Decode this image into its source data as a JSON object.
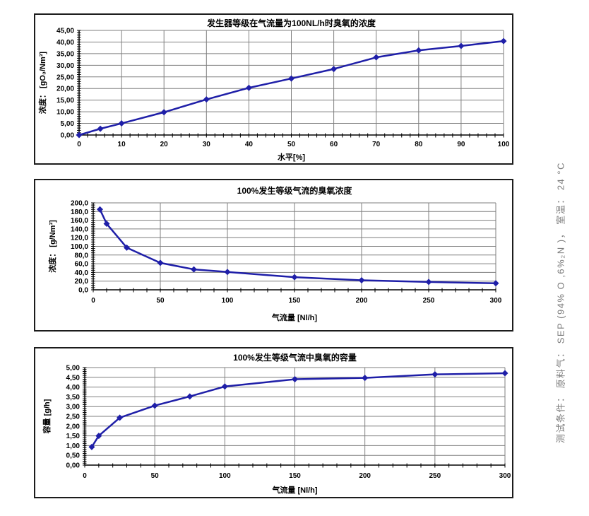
{
  "page": {
    "background": "#ffffff"
  },
  "side_note": {
    "text": "测试条件： 原料气： SEP (94% O ,6%₂N )， 室温： 24 °C",
    "color": "#7c7c7c"
  },
  "style": {
    "series_color": "#1f1fa8",
    "grid_color": "#7f7f7f",
    "axis_color": "#000000",
    "text_color": "#000000",
    "frame_color": "#1c1c1c"
  },
  "chart_data": [
    {
      "type": "line",
      "title": "发生器等级在气流量为100NL/h时臭氧的浓度",
      "xlabel": "水平[%]",
      "ylabel": "浓度： [gO₃/Nm³]",
      "x": [
        0,
        5,
        10,
        20,
        30,
        40,
        50,
        60,
        70,
        80,
        90,
        100
      ],
      "y": [
        0,
        2.7,
        5.0,
        9.8,
        15.3,
        20.3,
        24.3,
        28.4,
        33.4,
        36.4,
        38.3,
        40.4
      ],
      "xlim": [
        0,
        100
      ],
      "ylim": [
        0,
        45
      ],
      "xtick_step": 10,
      "ytick_step": 5,
      "x_minor_step": 2,
      "y_minor_step": 1,
      "x_decimals": 0,
      "y_decimals": 2,
      "decimal_separator": ",",
      "marker": "diamond",
      "grid": true,
      "legend": "none"
    },
    {
      "type": "line",
      "title": "100%发生等级气流的臭氧浓度",
      "xlabel": "气流量 [Nl/h]",
      "ylabel": "浓度： [g/Nm³]",
      "x": [
        5,
        10,
        25,
        50,
        75,
        100,
        150,
        200,
        250,
        300
      ],
      "y": [
        185,
        152,
        97,
        62,
        47,
        41,
        29,
        22,
        18,
        15
      ],
      "xlim": [
        0,
        300
      ],
      "ylim": [
        0,
        200
      ],
      "xtick_step": 50,
      "ytick_step": 20,
      "x_minor_step": 10,
      "y_minor_step": 5,
      "x_decimals": 0,
      "y_decimals": 1,
      "decimal_separator": ",",
      "marker": "diamond",
      "grid": true,
      "legend": "none"
    },
    {
      "type": "line",
      "title": "100%发生等级气流中臭氧的容量",
      "xlabel": "气流量 [Nl/h]",
      "ylabel": "容量 [g/h]",
      "x": [
        5,
        10,
        25,
        50,
        75,
        100,
        150,
        200,
        250,
        300
      ],
      "y": [
        0.93,
        1.5,
        2.43,
        3.05,
        3.52,
        4.03,
        4.4,
        4.47,
        4.65,
        4.71
      ],
      "xlim": [
        0,
        300
      ],
      "ylim": [
        0,
        5
      ],
      "xtick_step": 50,
      "ytick_step": 0.5,
      "x_minor_step": 10,
      "y_minor_step": 0.1,
      "x_decimals": 0,
      "y_decimals": 2,
      "decimal_separator": ",",
      "marker": "diamond",
      "grid": true,
      "legend": "none"
    }
  ]
}
